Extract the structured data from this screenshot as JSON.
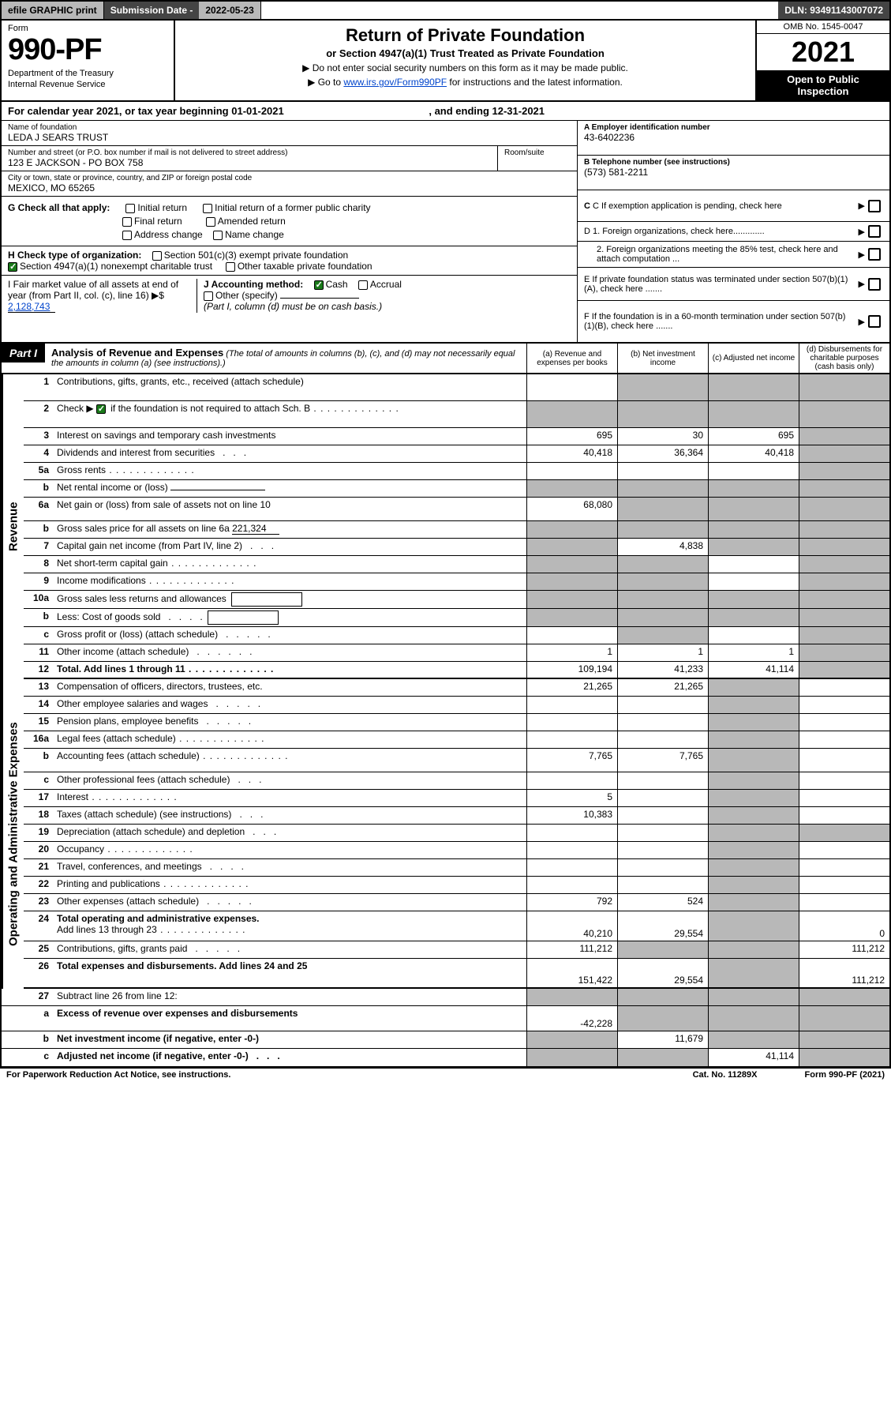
{
  "topbar": {
    "efile": "efile GRAPHIC print",
    "subdate_label": "Submission Date - ",
    "subdate_val": "2022-05-23",
    "dln_label": "DLN: ",
    "dln_val": "93491143007072"
  },
  "header": {
    "form_label": "Form",
    "form_no": "990-PF",
    "dept1": "Department of the Treasury",
    "dept2": "Internal Revenue Service",
    "title": "Return of Private Foundation",
    "subtitle": "or Section 4947(a)(1) Trust Treated as Private Foundation",
    "note1": "▶ Do not enter social security numbers on this form as it may be made public.",
    "note2_pre": "▶ Go to ",
    "note2_link": "www.irs.gov/Form990PF",
    "note2_post": " for instructions and the latest information.",
    "omb": "OMB No. 1545-0047",
    "year": "2021",
    "open": "Open to Public Inspection"
  },
  "calyear": {
    "pre": "For calendar year 2021, or tax year beginning ",
    "begin": "01-01-2021",
    "mid": " , and ending ",
    "end": "12-31-2021"
  },
  "foundation": {
    "name_label": "Name of foundation",
    "name": "LEDA J SEARS TRUST",
    "addr_label": "Number and street (or P.O. box number if mail is not delivered to street address)",
    "addr": "123 E JACKSON - PO BOX 758",
    "room_label": "Room/suite",
    "room": "",
    "city_label": "City or town, state or province, country, and ZIP or foreign postal code",
    "city": "MEXICO, MO  65265"
  },
  "rightinfo": {
    "a_label": "A Employer identification number",
    "a_val": "43-6402236",
    "b_label": "B Telephone number (see instructions)",
    "b_val": "(573) 581-2211",
    "c_label": "C If exemption application is pending, check here",
    "d1_label": "D 1. Foreign organizations, check here.............",
    "d2_label": "2. Foreign organizations meeting the 85% test, check here and attach computation ...",
    "e_label": "E  If private foundation status was terminated under section 507(b)(1)(A), check here .......",
    "f_label": "F  If the foundation is in a 60-month termination under section 507(b)(1)(B), check here ......."
  },
  "g": {
    "label": "G Check all that apply:",
    "o1": "Initial return",
    "o2": "Final return",
    "o3": "Address change",
    "o4": "Initial return of a former public charity",
    "o5": "Amended return",
    "o6": "Name change"
  },
  "h": {
    "label": "H Check type of organization:",
    "o1": "Section 501(c)(3) exempt private foundation",
    "o2": "Section 4947(a)(1) nonexempt charitable trust",
    "o3": "Other taxable private foundation"
  },
  "i": {
    "label": "I Fair market value of all assets at end of year (from Part II, col. (c), line 16) ▶$ ",
    "val": "2,128,743"
  },
  "j": {
    "label": "J Accounting method:",
    "o1": "Cash",
    "o2": "Accrual",
    "o3": "Other (specify)",
    "note": "(Part I, column (d) must be on cash basis.)"
  },
  "part1": {
    "label": "Part I",
    "title": "Analysis of Revenue and Expenses",
    "desc": " (The total of amounts in columns (b), (c), and (d) may not necessarily equal the amounts in column (a) (see instructions).)",
    "col_a": "(a)   Revenue and expenses per books",
    "col_b": "(b)   Net investment income",
    "col_c": "(c)   Adjusted net income",
    "col_d": "(d)   Disbursements for charitable purposes (cash basis only)"
  },
  "side_revenue": "Revenue",
  "side_expenses": "Operating and Administrative Expenses",
  "lines": {
    "l1": {
      "no": "1",
      "desc": "Contributions, gifts, grants, etc., received (attach schedule)"
    },
    "l2": {
      "no": "2",
      "desc": "Check ▶ ",
      "desc2": " if the foundation is not required to attach Sch. B"
    },
    "l3": {
      "no": "3",
      "desc": "Interest on savings and temporary cash investments",
      "a": "695",
      "b": "30",
      "c": "695"
    },
    "l4": {
      "no": "4",
      "desc": "Dividends and interest from securities",
      "a": "40,418",
      "b": "36,364",
      "c": "40,418"
    },
    "l5a": {
      "no": "5a",
      "desc": "Gross rents"
    },
    "l5b": {
      "no": "b",
      "desc": "Net rental income or (loss)"
    },
    "l6a": {
      "no": "6a",
      "desc": "Net gain or (loss) from sale of assets not on line 10",
      "a": "68,080"
    },
    "l6b": {
      "no": "b",
      "desc": "Gross sales price for all assets on line 6a",
      "inline": "221,324"
    },
    "l7": {
      "no": "7",
      "desc": "Capital gain net income (from Part IV, line 2)",
      "b": "4,838"
    },
    "l8": {
      "no": "8",
      "desc": "Net short-term capital gain"
    },
    "l9": {
      "no": "9",
      "desc": "Income modifications"
    },
    "l10a": {
      "no": "10a",
      "desc": "Gross sales less returns and allowances"
    },
    "l10b": {
      "no": "b",
      "desc": "Less: Cost of goods sold"
    },
    "l10c": {
      "no": "c",
      "desc": "Gross profit or (loss) (attach schedule)"
    },
    "l11": {
      "no": "11",
      "desc": "Other income (attach schedule)",
      "a": "1",
      "b": "1",
      "c": "1"
    },
    "l12": {
      "no": "12",
      "desc": "Total. Add lines 1 through 11",
      "a": "109,194",
      "b": "41,233",
      "c": "41,114"
    },
    "l13": {
      "no": "13",
      "desc": "Compensation of officers, directors, trustees, etc.",
      "a": "21,265",
      "b": "21,265"
    },
    "l14": {
      "no": "14",
      "desc": "Other employee salaries and wages"
    },
    "l15": {
      "no": "15",
      "desc": "Pension plans, employee benefits"
    },
    "l16a": {
      "no": "16a",
      "desc": "Legal fees (attach schedule)"
    },
    "l16b": {
      "no": "b",
      "desc": "Accounting fees (attach schedule)",
      "a": "7,765",
      "b": "7,765"
    },
    "l16c": {
      "no": "c",
      "desc": "Other professional fees (attach schedule)"
    },
    "l17": {
      "no": "17",
      "desc": "Interest",
      "a": "5"
    },
    "l18": {
      "no": "18",
      "desc": "Taxes (attach schedule) (see instructions)",
      "a": "10,383"
    },
    "l19": {
      "no": "19",
      "desc": "Depreciation (attach schedule) and depletion"
    },
    "l20": {
      "no": "20",
      "desc": "Occupancy"
    },
    "l21": {
      "no": "21",
      "desc": "Travel, conferences, and meetings"
    },
    "l22": {
      "no": "22",
      "desc": "Printing and publications"
    },
    "l23": {
      "no": "23",
      "desc": "Other expenses (attach schedule)",
      "a": "792",
      "b": "524"
    },
    "l24": {
      "no": "24",
      "desc": "Total operating and administrative expenses.",
      "desc2": "Add lines 13 through 23",
      "a": "40,210",
      "b": "29,554",
      "d": "0"
    },
    "l25": {
      "no": "25",
      "desc": "Contributions, gifts, grants paid",
      "a": "111,212",
      "d": "111,212"
    },
    "l26": {
      "no": "26",
      "desc": "Total expenses and disbursements. Add lines 24 and 25",
      "a": "151,422",
      "b": "29,554",
      "d": "111,212"
    },
    "l27": {
      "no": "27",
      "desc": "Subtract line 26 from line 12:"
    },
    "l27a": {
      "no": "a",
      "desc": "Excess of revenue over expenses and disbursements",
      "a": "-42,228"
    },
    "l27b": {
      "no": "b",
      "desc": "Net investment income (if negative, enter -0-)",
      "b": "11,679"
    },
    "l27c": {
      "no": "c",
      "desc": "Adjusted net income (if negative, enter -0-)",
      "c": "41,114"
    }
  },
  "footer": {
    "left": "For Paperwork Reduction Act Notice, see instructions.",
    "mid": "Cat. No. 11289X",
    "right": "Form 990-PF (2021)"
  },
  "colors": {
    "grey": "#b8b8b8",
    "dark": "#444444",
    "link": "#0044cc",
    "green": "#1a7a1a"
  }
}
